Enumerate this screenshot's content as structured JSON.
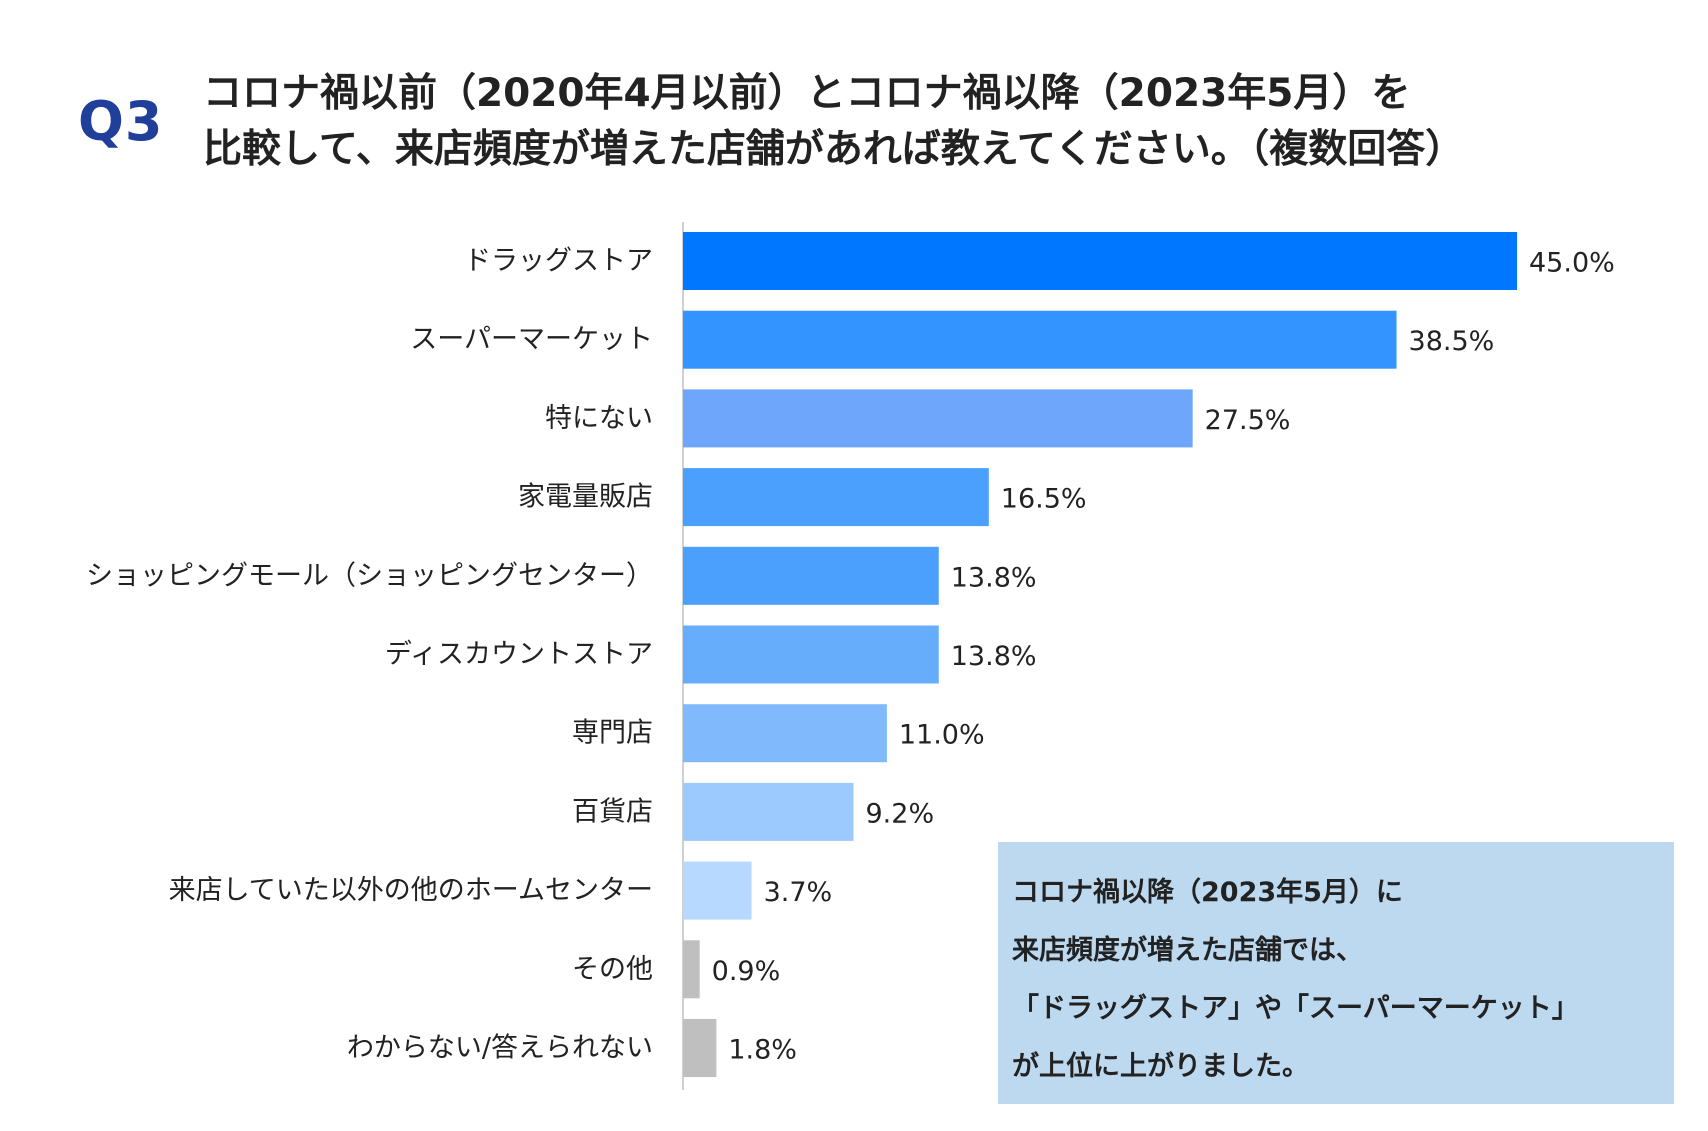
{
  "header": {
    "badge": "Q3",
    "title_line1": "コロナ禍以前（2020年4月以前）とコロナ禍以降（2023年5月）を",
    "title_line2": "比較して、来店頻度が増えた店舗があれば教えてください。（複数回答）"
  },
  "chart_data": {
    "type": "bar",
    "orientation": "horizontal",
    "categories": [
      "ドラッグストア",
      "スーパーマーケット",
      "特にない",
      "家電量販店",
      "ショッピングモール（ショッピングセンター）",
      "ディスカウントストア",
      "専門店",
      "百貨店",
      "来店していた以外の他のホームセンター",
      "その他",
      "わからない/答えられない"
    ],
    "values": [
      45.0,
      38.5,
      27.5,
      16.5,
      13.8,
      13.8,
      11.0,
      9.2,
      3.7,
      0.9,
      1.8
    ],
    "data_labels": [
      "45.0%",
      "38.5%",
      "27.5%",
      "16.5%",
      "13.8%",
      "13.8%",
      "11.0%",
      "9.2%",
      "3.7%",
      "0.9%",
      "1.8%"
    ],
    "colors": [
      "#0077ff",
      "#3393ff",
      "#6ea6fb",
      "#4aa0fc",
      "#4aa0fc",
      "#66adfc",
      "#80bafd",
      "#9cc9fe",
      "#b8d9ff",
      "#bfbfbf",
      "#bfbfbf"
    ],
    "xlim": [
      0,
      45
    ],
    "unit": "%",
    "grid": false,
    "title": "",
    "xlabel": "",
    "ylabel": ""
  },
  "note": {
    "lines": [
      "コロナ禍以降（2023年5月）に",
      "来店頻度が増えた店舗では、",
      "「ドラッグストア」や「スーパーマーケット」",
      "が上位に上がりました。"
    ],
    "background": "#bcd9f0"
  }
}
